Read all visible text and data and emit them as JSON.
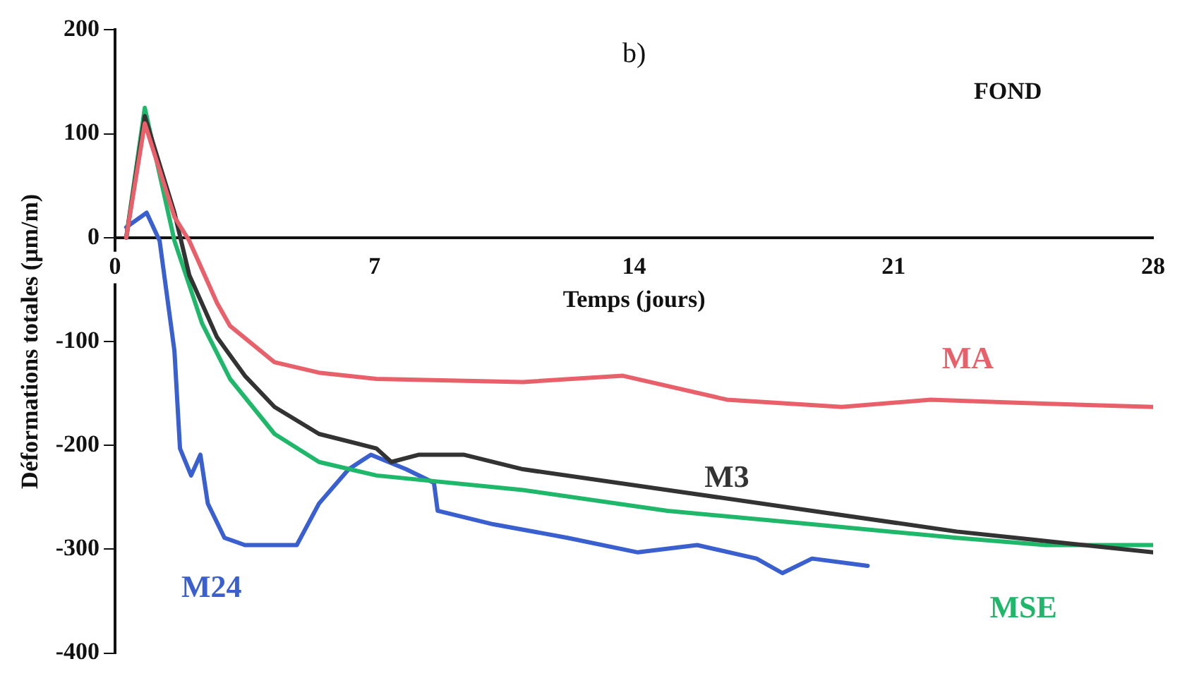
{
  "chart_data": {
    "type": "line",
    "xlabel": "Temps (jours)",
    "ylabel": "Déformations totales (µm/m)",
    "annotations": [
      "b)",
      "FOND"
    ],
    "xlim": [
      0,
      28
    ],
    "xticks": [
      0,
      7,
      14,
      21,
      28
    ],
    "ylim": [
      -400,
      200
    ],
    "yticks": [
      -400,
      -300,
      -200,
      -100,
      0,
      100,
      200
    ],
    "grid": false,
    "legend": false,
    "marker": "none",
    "line_style": "solid",
    "series": [
      {
        "name": "MA",
        "color": "#e8606a",
        "x": [
          0.3,
          0.8,
          1.6,
          2.0,
          2.75,
          3.1,
          4.3,
          5.5,
          7.05,
          11,
          13.7,
          16.5,
          19.6,
          22,
          24.3,
          28
        ],
        "values": [
          0,
          110,
          20,
          -3,
          -63,
          -85,
          -120,
          -130,
          -136,
          -139,
          -133,
          -156,
          -163,
          -156,
          -159,
          -163
        ]
      },
      {
        "name": "M3",
        "color": "#333333",
        "x": [
          0.3,
          0.8,
          1.6,
          2.0,
          2.75,
          3.5,
          4.3,
          5.5,
          7.05,
          7.45,
          8.2,
          9.4,
          11,
          14.9,
          18.8,
          22.7,
          28
        ],
        "values": [
          0,
          117,
          24,
          -36,
          -96,
          -133,
          -163,
          -189,
          -203,
          -216,
          -209,
          -209,
          -223,
          -243,
          -263,
          -283,
          -303
        ]
      },
      {
        "name": "MSE",
        "color": "#1fb86a",
        "x": [
          0.3,
          0.8,
          1.6,
          2.35,
          3.1,
          4.3,
          5.5,
          7.05,
          11,
          14.9,
          18.8,
          22.7,
          25.1,
          28
        ],
        "values": [
          0,
          125,
          -3,
          -83,
          -136,
          -189,
          -216,
          -229,
          -243,
          -263,
          -276,
          -289,
          -296,
          -296
        ]
      },
      {
        "name": "M24",
        "color": "#3a5fcf",
        "x": [
          0.3,
          0.85,
          1.2,
          1.6,
          1.75,
          2.05,
          2.3,
          2.5,
          2.95,
          3.5,
          4.9,
          5.5,
          6.3,
          6.9,
          7.85,
          8.6,
          8.7,
          10.2,
          12.2,
          14.1,
          15.7,
          17.3,
          18,
          18.8,
          20.3
        ],
        "values": [
          10,
          24,
          -3,
          -109,
          -203,
          -229,
          -209,
          -256,
          -289,
          -296,
          -296,
          -256,
          -223,
          -209,
          -223,
          -236,
          -263,
          -276,
          -289,
          -303,
          -296,
          -309,
          -323,
          -309,
          -316
        ]
      }
    ]
  }
}
